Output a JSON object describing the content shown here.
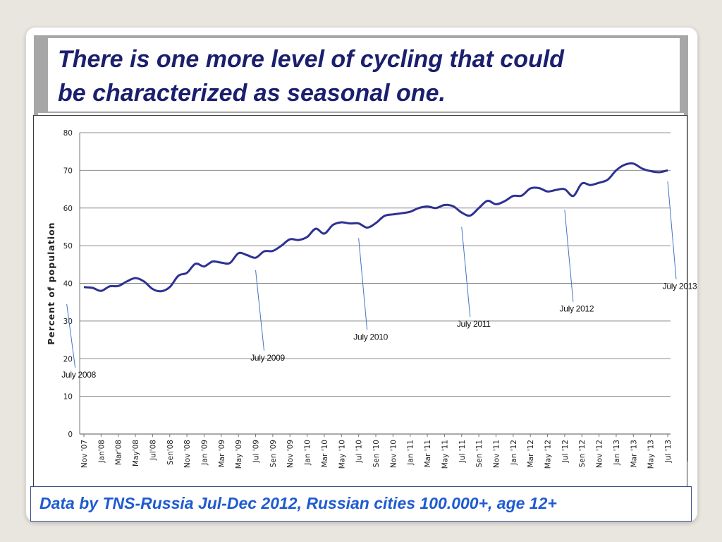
{
  "slide": {
    "title_line1": "There is one more level of cycling that could",
    "title_line2": "be characterized as seasonal one.",
    "footer": "Data by TNS-Russia Jul-Dec 2012, Russian cities 100.000+, age 12+"
  },
  "colors": {
    "title": "#1b1f6e",
    "footer": "#1f5bd1",
    "series": "#2e3192",
    "annotation_line": "#4472c4",
    "grid": "#8c8c8c",
    "band": "#a7a7a7"
  },
  "chart_data": {
    "type": "line",
    "title": "",
    "xlabel": "",
    "ylabel": "Percent of population",
    "ylim": [
      0,
      80
    ],
    "yticks": [
      0,
      10,
      20,
      30,
      40,
      50,
      60,
      70,
      80
    ],
    "grid": "horizontal",
    "x_tick_labels": [
      "Nov '07",
      "Jan'08",
      "Mar'08",
      "May'08",
      "Jul'08",
      "Sen'08",
      "Nov '08",
      "Jan '09",
      "Mar '09",
      "May '09",
      "Jul '09",
      "Sen '09",
      "Nov '09",
      "Jan '10",
      "Mar '10",
      "May '10",
      "Jul '10",
      "Sen '10",
      "Nov '10",
      "Jan '11",
      "Mar '11",
      "May '11",
      "Jul '11",
      "Sen '11",
      "Nov '11",
      "Jan '12",
      "Mar '12",
      "May '12",
      "Jul '12",
      "Sen '12",
      "Nov '12",
      "Jan '13",
      "Mar '13",
      "May '13",
      "Jul '13"
    ],
    "series": [
      {
        "values": [
          39,
          38.8,
          38,
          39.2,
          39.3,
          40.5,
          41.4,
          40.5,
          38.5,
          37.9,
          39,
          42,
          42.8,
          45.2,
          44.5,
          45.8,
          45.5,
          45.4,
          48,
          47.5,
          46.8,
          48.5,
          48.6,
          50,
          51.7,
          51.5,
          52.3,
          54.5,
          53.2,
          55.5,
          56.2,
          55.9,
          55.9,
          54.8,
          56,
          57.9,
          58.3,
          58.6,
          59,
          60,
          60.4,
          60,
          60.8,
          60.5,
          58.8,
          58,
          60,
          61.9,
          61,
          61.8,
          63.2,
          63.3,
          65.2,
          65.3,
          64.4,
          64.8,
          65,
          63.2,
          66.5,
          66.1,
          66.7,
          67.5,
          70,
          71.5,
          71.8,
          70.5,
          69.8,
          69.5,
          70
        ]
      }
    ],
    "annotations": [
      {
        "label": "July 2008",
        "point_month": "Jul '08",
        "point_y": 34.5,
        "text_y": 15
      },
      {
        "label": "July 2009",
        "point_month": "Jul '09",
        "point_y": 43.5,
        "text_y": 19.5
      },
      {
        "label": "July 2010",
        "point_month": "Jul '10",
        "point_y": 52,
        "text_y": 25
      },
      {
        "label": "July 2011",
        "point_month": "Jul '11",
        "point_y": 55,
        "text_y": 28.5
      },
      {
        "label": "July 2012",
        "point_month": "Jul '12",
        "point_y": 59.5,
        "text_y": 32.5
      },
      {
        "label": "July 2013",
        "point_month": "Jul '13",
        "point_y": 67,
        "text_y": 38.5
      }
    ]
  }
}
